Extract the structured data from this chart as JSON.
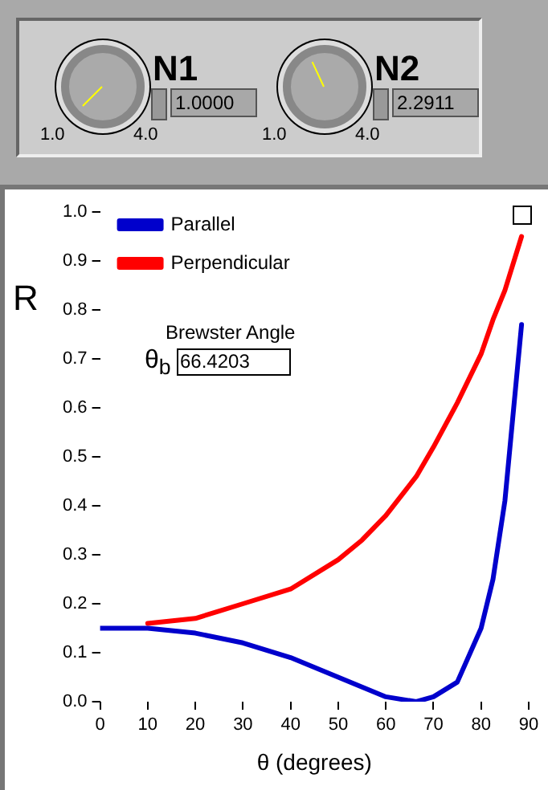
{
  "chart_data": {
    "type": "line",
    "xlabel": "θ (degrees)",
    "ylabel": "R",
    "x": [
      0,
      10,
      20,
      30,
      40,
      50,
      55,
      60,
      66.4,
      70,
      75,
      80,
      82.5,
      85,
      88.5
    ],
    "series": [
      {
        "name": "Parallel",
        "color": "#0000cc",
        "values": [
          0.15,
          0.15,
          0.14,
          0.12,
          0.09,
          0.05,
          0.03,
          0.01,
          0,
          0.01,
          0.04,
          0.15,
          0.25,
          0.41,
          0.77
        ]
      },
      {
        "name": "Perpendicular",
        "color": "#ff0000",
        "values": [
          null,
          0.16,
          0.17,
          0.2,
          0.23,
          0.29,
          0.33,
          0.38,
          0.46,
          0.52,
          0.61,
          0.71,
          0.78,
          0.84,
          0.95
        ]
      }
    ],
    "xlim": [
      0,
      90
    ],
    "xticks": [
      0,
      10,
      20,
      30,
      40,
      50,
      60,
      70,
      80,
      90
    ],
    "ylim": [
      0,
      1
    ],
    "yticks": [
      {
        "value": 0,
        "label": "0.0"
      },
      0.1,
      0.2,
      0.3,
      0.4,
      0.5,
      0.6,
      0.7,
      0.8,
      0.9,
      {
        "value": 1,
        "label": "1.0"
      }
    ],
    "legend": "top left",
    "grid": false,
    "annotations": [
      "N1",
      "1.0",
      "4.0",
      "1.0000",
      "N2",
      "1.0",
      "4.0",
      "2.2911",
      "Brewster Angle",
      "θ$_{b}$",
      "66.4203"
    ]
  }
}
